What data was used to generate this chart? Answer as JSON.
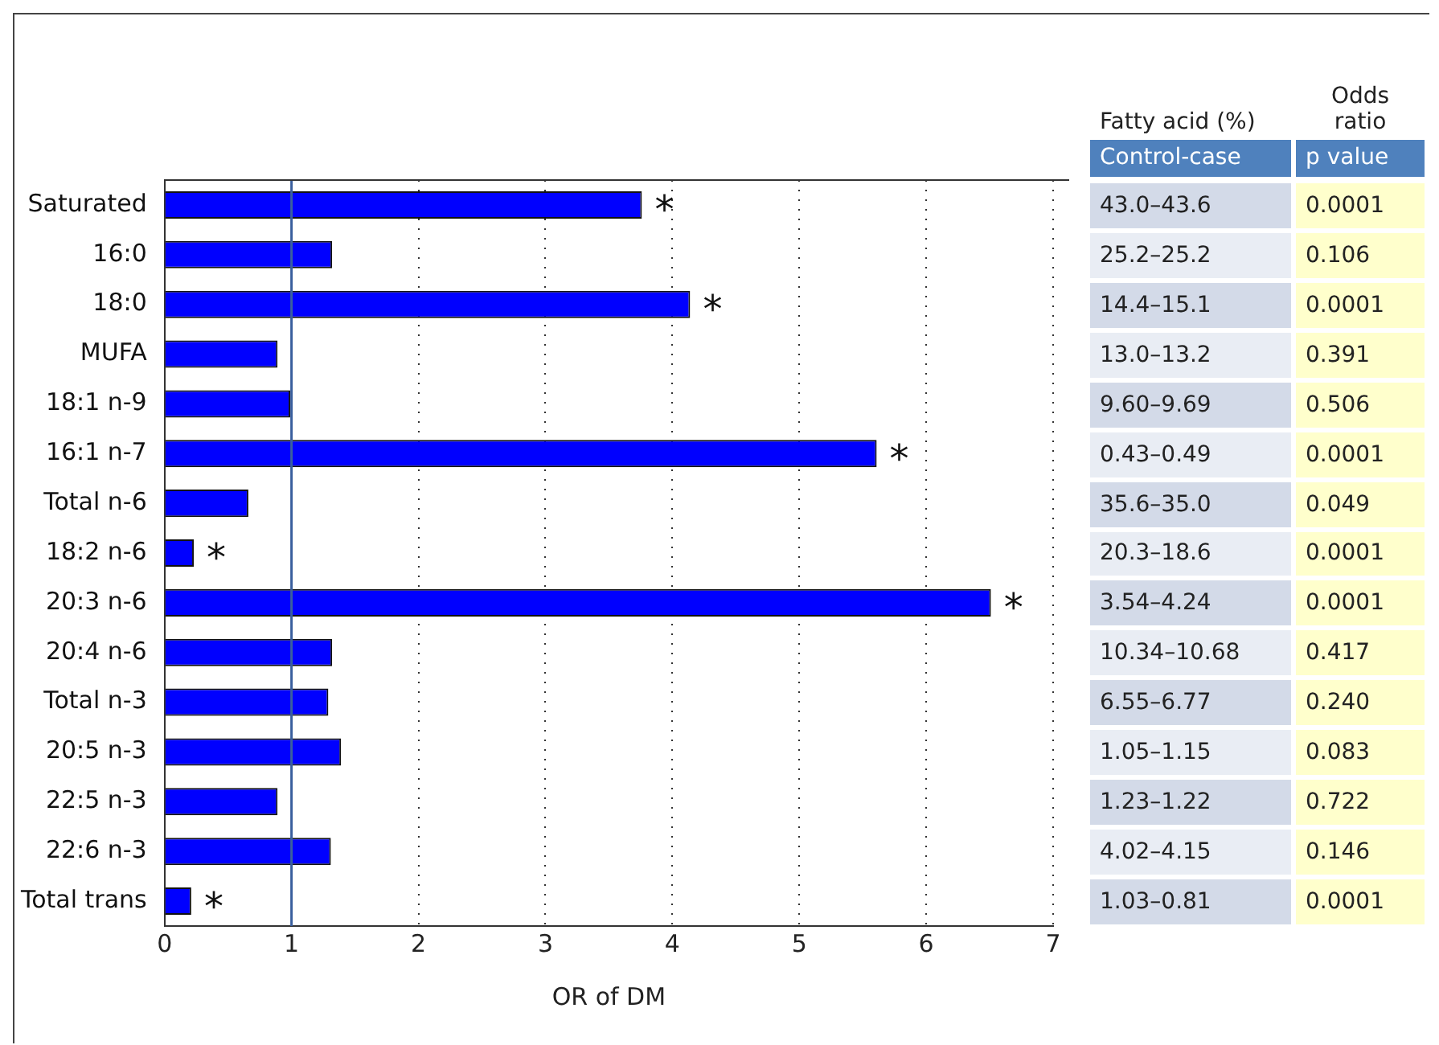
{
  "chart_data": [
    {
      "type": "bar",
      "orientation": "horizontal",
      "xlabel": "OR of DM",
      "categories": [
        "Saturated",
        "16:0",
        "18:0",
        "MUFA",
        "18:1 n-9",
        "16:1 n-7",
        "Total n-6",
        "18:2 n-6",
        "20:3 n-6",
        "20:4 n-6",
        "Total n-3",
        "20:5 n-3",
        "22:5 n-3",
        "22:6 n-3",
        "Total trans"
      ],
      "values": [
        3.76,
        1.32,
        4.14,
        0.89,
        0.99,
        5.61,
        0.66,
        0.23,
        6.51,
        1.32,
        1.29,
        1.39,
        0.89,
        1.31,
        0.21
      ],
      "color": "#0000ff",
      "xlim": [
        0,
        7
      ],
      "xticks": [
        0,
        1,
        2,
        3,
        4,
        5,
        6,
        7
      ],
      "grid": "x",
      "ref_lines": [
        {
          "axis": "x",
          "value": 1,
          "color": "#3a5f9e"
        }
      ],
      "annotations": [
        {
          "text": "*",
          "x": 3.76,
          "y": "Saturated"
        },
        {
          "text": "*",
          "x": 4.14,
          "y": "18:0"
        },
        {
          "text": "*",
          "x": 5.61,
          "y": "16:1 n-7"
        },
        {
          "text": "*",
          "x": 0.23,
          "y": "18:2 n-6"
        },
        {
          "text": "*",
          "x": 6.51,
          "y": "20:3 n-6"
        },
        {
          "text": "*",
          "x": 0.21,
          "y": "Total trans"
        }
      ]
    },
    {
      "type": "other",
      "annotations": [
        "Fatty acid (%)",
        "Odds ratio",
        "Control-case",
        "p value",
        "43.0–43.6",
        "0.0001",
        "25.2–25.2",
        "0.106",
        "14.4–15.1",
        "0.0001",
        "13.0–13.2",
        "0.391",
        "9.60–9.69",
        "0.506",
        "0.43–0.49",
        "0.0001",
        "35.6–35.0",
        "0.049",
        "20.3–18.6",
        "0.0001",
        "3.54–4.24",
        "0.0001",
        "10.34–10.68",
        "0.417",
        "6.55–6.77",
        "0.240",
        "1.05–1.15",
        "0.083",
        "1.23–1.22",
        "0.722",
        "4.02–4.15",
        "0.146",
        "1.03–0.81",
        "0.0001"
      ]
    }
  ]
}
